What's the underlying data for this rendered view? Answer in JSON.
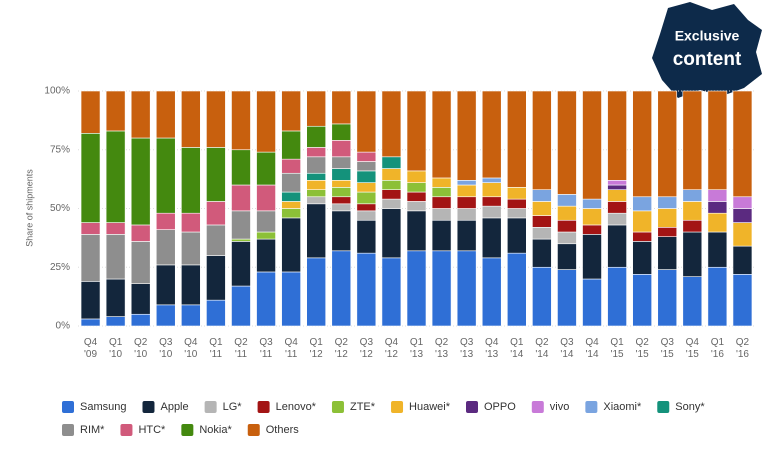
{
  "badge": {
    "line1": "Exclusive",
    "line2": "content"
  },
  "chart_data": {
    "type": "stacked-bar",
    "y_label": "Share of shipments",
    "categories": [
      "Q4 '09",
      "Q1 '10",
      "Q2 '10",
      "Q3 '10",
      "Q4 '10",
      "Q1 '11",
      "Q2 '11",
      "Q3 '11",
      "Q4 '11",
      "Q1 '12",
      "Q2 '12",
      "Q3 '12",
      "Q4 '12",
      "Q1 '13",
      "Q2 '13",
      "Q3 '13",
      "Q4 '13",
      "Q1 '14",
      "Q2 '14",
      "Q3 '14",
      "Q4 '14",
      "Q1 '15",
      "Q2 '15",
      "Q3 '15",
      "Q4 '15",
      "Q1 '16",
      "Q2 '16"
    ],
    "ylim": [
      0,
      100
    ],
    "yticks": [
      {
        "value": 0,
        "label": "0%"
      },
      {
        "value": 25,
        "label": "25%"
      },
      {
        "value": 50,
        "label": "50%"
      },
      {
        "value": 75,
        "label": "75%"
      },
      {
        "value": 100,
        "label": "100%"
      }
    ],
    "grid": true,
    "series": [
      {
        "name": "Samsung",
        "color": "#2f6fd6",
        "values": [
          3,
          4,
          5,
          9,
          9,
          11,
          17,
          23,
          23,
          29,
          32,
          31,
          29,
          32,
          32,
          32,
          29,
          31,
          25,
          24,
          20,
          25,
          22,
          24,
          21,
          25,
          22
        ]
      },
      {
        "name": "Apple",
        "color": "#13263c",
        "values": [
          16,
          16,
          13,
          17,
          17,
          19,
          19,
          14,
          23,
          23,
          17,
          14,
          21,
          17,
          13,
          13,
          17,
          15,
          12,
          11,
          19,
          18,
          14,
          14,
          19,
          15,
          12
        ]
      },
      {
        "name": "LG*",
        "color": "#b5b5b5",
        "values": [
          null,
          null,
          null,
          null,
          null,
          null,
          null,
          null,
          null,
          3,
          3,
          4,
          4,
          4,
          5,
          5,
          5,
          4,
          5,
          5,
          null,
          5,
          null,
          null,
          null,
          null,
          null
        ]
      },
      {
        "name": "Lenovo*",
        "color": "#a31414",
        "values": [
          null,
          null,
          null,
          null,
          null,
          null,
          null,
          null,
          null,
          null,
          3,
          3,
          4,
          4,
          5,
          5,
          4,
          4,
          5,
          5,
          4,
          5,
          4,
          4,
          5,
          null,
          null
        ]
      },
      {
        "name": "ZTE*",
        "color": "#8cc037",
        "values": [
          null,
          null,
          null,
          null,
          null,
          null,
          1,
          3,
          4,
          3,
          4,
          5,
          4,
          4,
          4,
          null,
          null,
          null,
          null,
          null,
          null,
          null,
          null,
          null,
          null,
          null,
          null
        ]
      },
      {
        "name": "Huawei*",
        "color": "#f0b429",
        "values": [
          null,
          null,
          null,
          null,
          null,
          null,
          null,
          null,
          3,
          4,
          3,
          4,
          5,
          5,
          4,
          5,
          6,
          5,
          6,
          6,
          7,
          5,
          9,
          8,
          8,
          8,
          10
        ]
      },
      {
        "name": "OPPO",
        "color": "#5b2a80",
        "values": [
          null,
          null,
          null,
          null,
          null,
          null,
          null,
          null,
          null,
          null,
          null,
          null,
          null,
          null,
          null,
          null,
          null,
          null,
          null,
          null,
          null,
          2,
          null,
          null,
          null,
          5,
          6
        ]
      },
      {
        "name": "vivo",
        "color": "#c87ad8",
        "values": [
          null,
          null,
          null,
          null,
          null,
          null,
          null,
          null,
          null,
          null,
          null,
          null,
          null,
          null,
          null,
          null,
          null,
          null,
          null,
          null,
          null,
          2,
          null,
          null,
          null,
          5,
          5
        ]
      },
      {
        "name": "Xiaomi*",
        "color": "#7aa4e0",
        "values": [
          null,
          null,
          null,
          null,
          null,
          null,
          null,
          null,
          null,
          null,
          null,
          null,
          null,
          null,
          null,
          2,
          2,
          null,
          5,
          5,
          4,
          null,
          6,
          5,
          5,
          null,
          null
        ]
      },
      {
        "name": "Sony*",
        "color": "#14927b",
        "values": [
          null,
          null,
          null,
          null,
          null,
          null,
          null,
          null,
          4,
          3,
          5,
          5,
          5,
          null,
          null,
          null,
          null,
          null,
          null,
          null,
          null,
          null,
          null,
          null,
          null,
          null,
          null
        ]
      },
      {
        "name": "RIM*",
        "color": "#8e8e8e",
        "values": [
          20,
          19,
          18,
          15,
          14,
          13,
          12,
          9,
          8,
          7,
          5,
          4,
          null,
          null,
          null,
          null,
          null,
          null,
          null,
          null,
          null,
          null,
          null,
          null,
          null,
          null,
          null
        ]
      },
      {
        "name": "HTC*",
        "color": "#d15a7b",
        "values": [
          5,
          5,
          7,
          7,
          8,
          10,
          11,
          11,
          6,
          4,
          7,
          4,
          null,
          null,
          null,
          null,
          null,
          null,
          null,
          null,
          null,
          null,
          null,
          null,
          null,
          null,
          null
        ]
      },
      {
        "name": "Nokia*",
        "color": "#44890f",
        "values": [
          38,
          39,
          37,
          32,
          28,
          23,
          15,
          14,
          12,
          9,
          7,
          null,
          null,
          null,
          null,
          null,
          null,
          null,
          null,
          null,
          null,
          null,
          null,
          null,
          null,
          null,
          null
        ]
      },
      {
        "name": "Others",
        "color": "#c8600e",
        "values": [
          18,
          17,
          20,
          20,
          24,
          24,
          25,
          26,
          17,
          15,
          14,
          26,
          28,
          34,
          37,
          38,
          37,
          41,
          42,
          44,
          46,
          38,
          45,
          45,
          42,
          42,
          45
        ]
      }
    ]
  }
}
